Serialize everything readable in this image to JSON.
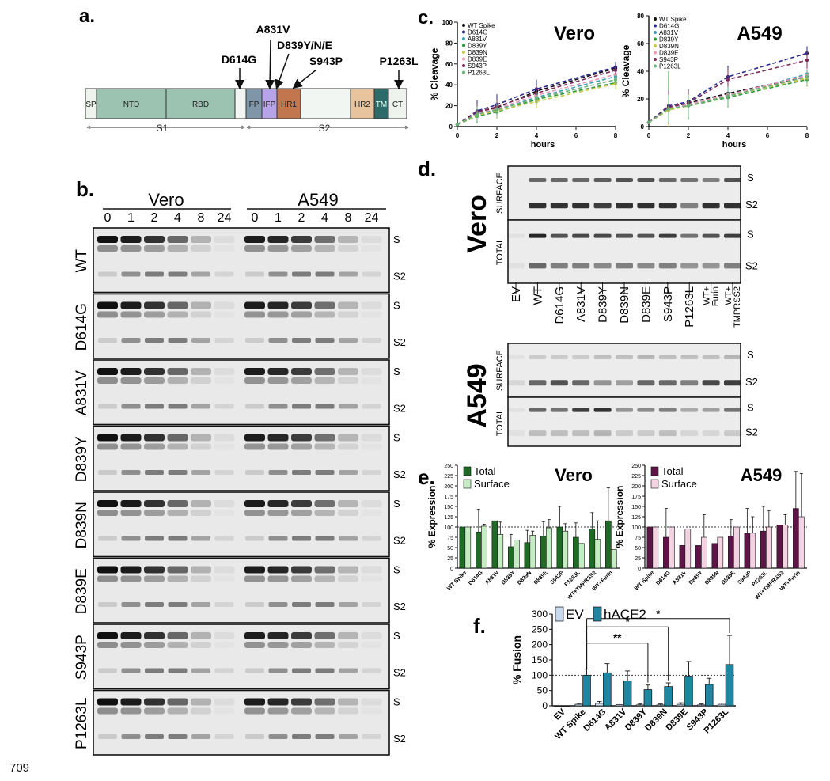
{
  "figure": {
    "line_number": "709",
    "panels": {
      "a": "a.",
      "b": "b.",
      "c": "c.",
      "d": "d.",
      "e": "e.",
      "f": "f."
    }
  },
  "panel_a": {
    "domains": [
      "SP",
      "NTD",
      "RBD",
      "FP",
      "IFP",
      "HR1",
      "HR2",
      "TM",
      "CT"
    ],
    "mutations": [
      "A831V",
      "D614G",
      "D839Y/N/E",
      "S943P",
      "P1263L"
    ],
    "subunits": [
      "S1",
      "S2"
    ],
    "colors": {
      "SP": "#eef3ee",
      "NTD": "#9cc3b2",
      "RBD": "#9cc3b2",
      "FP": "#7f96a8",
      "IFP": "#b7a3e8",
      "HR1": "#c1764e",
      "HR2": "#e7c39e",
      "TM": "#2f6a6a",
      "CT": "#eef3ee"
    }
  },
  "panel_b": {
    "cell_lines": [
      "Vero",
      "A549"
    ],
    "timepoints": [
      "0",
      "1",
      "2",
      "4",
      "8",
      "24"
    ],
    "rows": [
      "WT",
      "D614G",
      "A831V",
      "D839Y",
      "D839N",
      "D839E",
      "S943P",
      "P1263L"
    ],
    "band_labels": [
      "S",
      "S2"
    ]
  },
  "panel_c": {
    "chart_data": [
      {
        "type": "line",
        "title": "Vero",
        "xlabel": "hours",
        "ylabel": "% Cleavage",
        "x": [
          0,
          1,
          2,
          4,
          8
        ],
        "xticks": [
          0,
          2,
          4,
          6,
          8
        ],
        "yticks": [
          0,
          20,
          40,
          60,
          80,
          100
        ],
        "ylim": [
          0,
          100
        ],
        "xlim": [
          0,
          8
        ],
        "series": [
          {
            "name": "WT Spike",
            "color": "#111111",
            "values": [
              2,
              14,
              18,
              34,
              56
            ],
            "err": [
              0,
              8,
              8,
              7,
              5
            ]
          },
          {
            "name": "D614G",
            "color": "#2a2a8a",
            "values": [
              2,
              15,
              21,
              36,
              57
            ],
            "err": [
              0,
              10,
              10,
              9,
              5
            ]
          },
          {
            "name": "A831V",
            "color": "#3aa0b8",
            "values": [
              2,
              12,
              16,
              28,
              48
            ],
            "err": [
              0,
              7,
              7,
              6,
              6
            ]
          },
          {
            "name": "D839Y",
            "color": "#2e9a3a",
            "values": [
              2,
              10,
              14,
              26,
              42
            ],
            "err": [
              0,
              7,
              6,
              6,
              6
            ]
          },
          {
            "name": "D839N",
            "color": "#c8c84a",
            "values": [
              2,
              11,
              15,
              24,
              41
            ],
            "err": [
              0,
              6,
              6,
              6,
              5
            ]
          },
          {
            "name": "D839E",
            "color": "#e89ab8",
            "values": [
              2,
              13,
              17,
              30,
              50
            ],
            "err": [
              0,
              7,
              7,
              6,
              5
            ]
          },
          {
            "name": "S943P",
            "color": "#7a2a5a",
            "values": [
              2,
              14,
              19,
              32,
              54
            ],
            "err": [
              0,
              8,
              7,
              7,
              5
            ]
          },
          {
            "name": "P1263L",
            "color": "#6ab07a",
            "values": [
              2,
              12,
              16,
              27,
              45
            ],
            "err": [
              0,
              7,
              6,
              6,
              5
            ]
          }
        ],
        "legend": "top-left"
      },
      {
        "type": "line",
        "title": "A549",
        "xlabel": "hours",
        "ylabel": "% Cleavage",
        "x": [
          0,
          1,
          2,
          4,
          8
        ],
        "xticks": [
          0,
          2,
          4,
          6,
          8
        ],
        "yticks": [
          0,
          20,
          40,
          60,
          80
        ],
        "ylim": [
          0,
          80
        ],
        "xlim": [
          0,
          8
        ],
        "series": [
          {
            "name": "WT Spike",
            "color": "#111111",
            "values": [
              3,
              14,
              17,
              24,
              36
            ],
            "err": [
              0,
              12,
              9,
              8,
              5
            ]
          },
          {
            "name": "D614G",
            "color": "#2a2a8a",
            "values": [
              3,
              15,
              18,
              36,
              53
            ],
            "err": [
              0,
              14,
              9,
              8,
              5
            ]
          },
          {
            "name": "A831V",
            "color": "#3aa0b8",
            "values": [
              3,
              13,
              16,
              22,
              38
            ],
            "err": [
              0,
              12,
              8,
              8,
              5
            ]
          },
          {
            "name": "D839Y",
            "color": "#2e9a3a",
            "values": [
              3,
              12,
              15,
              21,
              34
            ],
            "err": [
              0,
              28,
              10,
              7,
              5
            ]
          },
          {
            "name": "D839N",
            "color": "#c8c84a",
            "values": [
              3,
              12,
              15,
              22,
              35
            ],
            "err": [
              0,
              12,
              8,
              7,
              5
            ]
          },
          {
            "name": "D839E",
            "color": "#e89ab8",
            "values": [
              3,
              13,
              16,
              23,
              37
            ],
            "err": [
              0,
              11,
              8,
              7,
              5
            ]
          },
          {
            "name": "S943P",
            "color": "#7a2a5a",
            "values": [
              3,
              14,
              17,
              34,
              48
            ],
            "err": [
              0,
              12,
              9,
              8,
              6
            ]
          },
          {
            "name": "P1263L",
            "color": "#6ab07a",
            "values": [
              3,
              13,
              15,
              22,
              36
            ],
            "err": [
              0,
              10,
              8,
              7,
              5
            ]
          }
        ],
        "legend": "top-left"
      }
    ]
  },
  "panel_d": {
    "cell_lines": [
      "Vero",
      "A549"
    ],
    "fractions": [
      "SURFACE",
      "TOTAL"
    ],
    "lanes": [
      "EV",
      "WT",
      "D614G",
      "A831V",
      "D839Y",
      "D839N",
      "D839E",
      "S943P",
      "P1263L",
      "WT+ Furin",
      "WT+ TMPRSS2"
    ],
    "band_labels": [
      "S",
      "S2"
    ]
  },
  "panel_e": {
    "chart_data": [
      {
        "type": "bar",
        "title": "Vero",
        "ylabel": "% Expression",
        "categories": [
          "WT Spike",
          "D614G",
          "A831V",
          "D839Y",
          "D839N",
          "D839E",
          "S943P",
          "P1263L",
          "WT+TMPRSS2",
          "WT+Furin"
        ],
        "ylim": [
          0,
          250
        ],
        "yticks": [
          0,
          25,
          50,
          75,
          100,
          125,
          150,
          175,
          200,
          225,
          250
        ],
        "reference_line": 100,
        "series": [
          {
            "name": "Total",
            "color": "#1f6b26",
            "values": [
              100,
              88,
              115,
              52,
              62,
              78,
              100,
              75,
              95,
              115
            ],
            "err": [
              0,
              55,
              0,
              30,
              30,
              35,
              50,
              35,
              40,
              80
            ]
          },
          {
            "name": "Surface",
            "color": "#c6ecc4",
            "values": [
              100,
              102,
              82,
              68,
              80,
              98,
              90,
              60,
              70,
              45
            ],
            "err": [
              0,
              5,
              30,
              0,
              10,
              20,
              18,
              0,
              45,
              0
            ]
          }
        ],
        "legend": "top-left"
      },
      {
        "type": "bar",
        "title": "A549",
        "ylabel": "% Expression",
        "categories": [
          "WT Spike",
          "D614G",
          "A831V",
          "D839Y",
          "D839N",
          "D839E",
          "S943P",
          "P1263L",
          "WT+TMPRSS2",
          "WT+Furin"
        ],
        "ylim": [
          0,
          250
        ],
        "yticks": [
          0,
          25,
          50,
          75,
          100,
          125,
          150,
          175,
          200,
          225,
          250
        ],
        "reference_line": 100,
        "series": [
          {
            "name": "Total",
            "color": "#5c1546",
            "values": [
              100,
              75,
              55,
              55,
              60,
              78,
              85,
              90,
              105,
              145
            ],
            "err": [
              0,
              70,
              0,
              0,
              0,
              40,
              60,
              60,
              0,
              90
            ]
          },
          {
            "name": "Surface",
            "color": "#f3d2e2",
            "values": [
              100,
              100,
              95,
              75,
              75,
              100,
              85,
              100,
              105,
              125
            ],
            "err": [
              0,
              0,
              0,
              55,
              0,
              0,
              40,
              40,
              25,
              105
            ]
          }
        ],
        "legend": "top-left"
      }
    ]
  },
  "panel_f": {
    "chart_data": {
      "type": "bar",
      "ylabel": "% Fusion",
      "categories": [
        "EV",
        "WT Spike",
        "D614G",
        "A831V",
        "D839Y",
        "D839N",
        "D839E",
        "S943P",
        "P1263L"
      ],
      "ylim": [
        0,
        300
      ],
      "yticks": [
        0,
        50,
        100,
        150,
        200,
        250,
        300
      ],
      "reference_line": 100,
      "series": [
        {
          "name": "EV",
          "color": "#c9daf0",
          "values": [
            0,
            5,
            8,
            4,
            3,
            3,
            5,
            3,
            5
          ],
          "err": [
            0,
            3,
            6,
            5,
            3,
            3,
            5,
            3,
            4
          ]
        },
        {
          "name": "hACE2",
          "color": "#1e86a0",
          "values": [
            0,
            100,
            108,
            82,
            53,
            63,
            97,
            70,
            135
          ],
          "err": [
            0,
            20,
            30,
            32,
            15,
            12,
            48,
            20,
            95
          ]
        }
      ],
      "significance": [
        {
          "from": "WT Spike",
          "to": "D839Y",
          "label": "**"
        },
        {
          "from": "WT Spike",
          "to": "D839N",
          "label": "*"
        },
        {
          "from": "WT Spike",
          "to": "P1263L",
          "label": "*"
        }
      ],
      "legend": "top"
    }
  }
}
